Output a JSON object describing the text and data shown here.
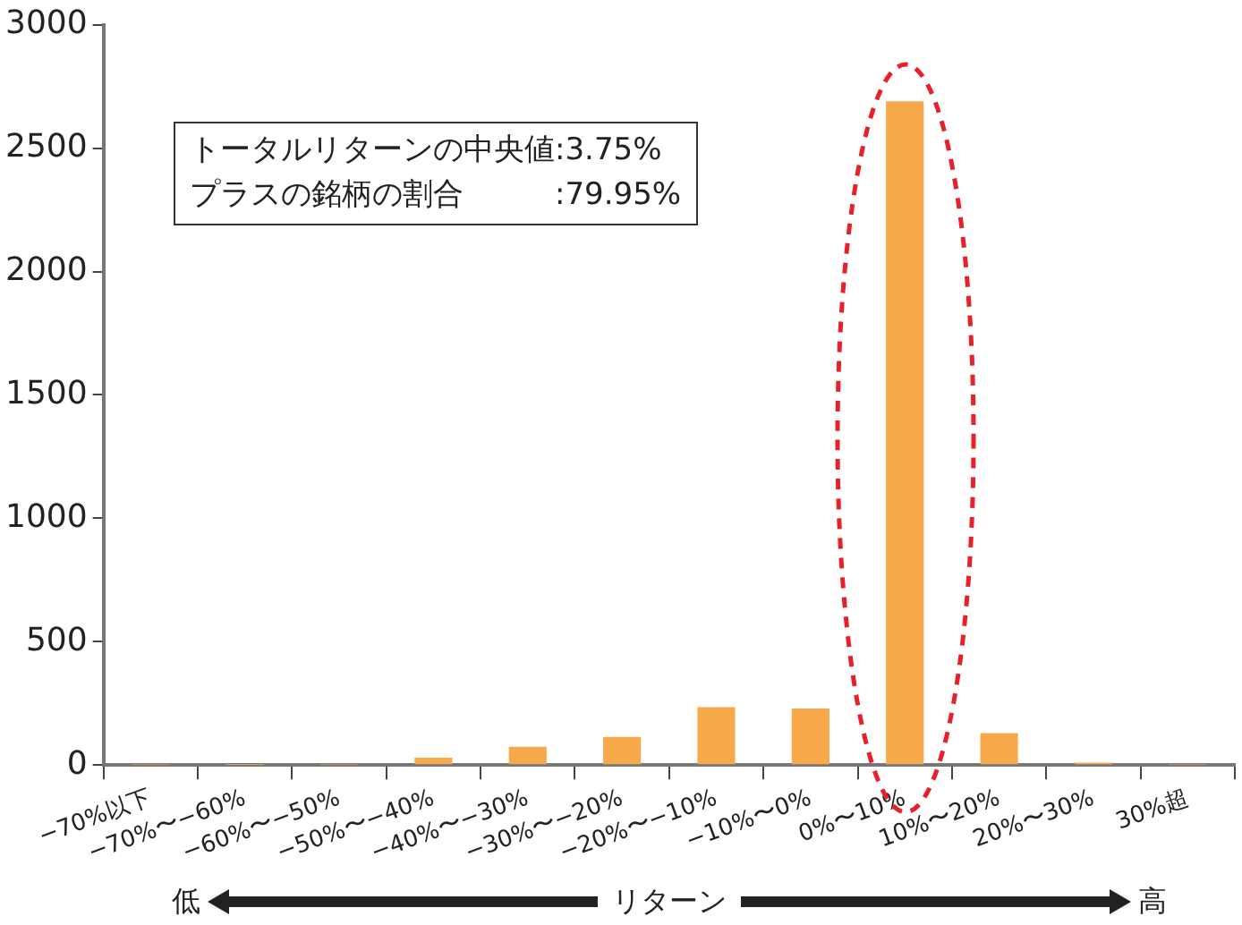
{
  "chart_data": {
    "type": "bar",
    "xlabel": "リターン",
    "categories": [
      "−70%以下",
      "−70%〜−60%",
      "−60%〜−50%",
      "−50%〜−40%",
      "−40%〜−30%",
      "−30%〜−20%",
      "−20%〜−10%",
      "−10%〜0%",
      "0%〜10%",
      "10%〜20%",
      "20%〜30%",
      "30%超"
    ],
    "values": [
      2,
      1,
      2,
      30,
      75,
      115,
      235,
      230,
      2690,
      130,
      10,
      2
    ],
    "color": "#f7a84a",
    "ylim": [
      0,
      3000
    ],
    "yticks": [
      0,
      500,
      1000,
      1500,
      2000,
      2500,
      3000
    ],
    "grid": false,
    "legend": false,
    "annotations": [
      "トータルリターンの中央値:3.75%",
      "プラスの銘柄の割合　　　:79.95%",
      "低",
      "高"
    ]
  }
}
